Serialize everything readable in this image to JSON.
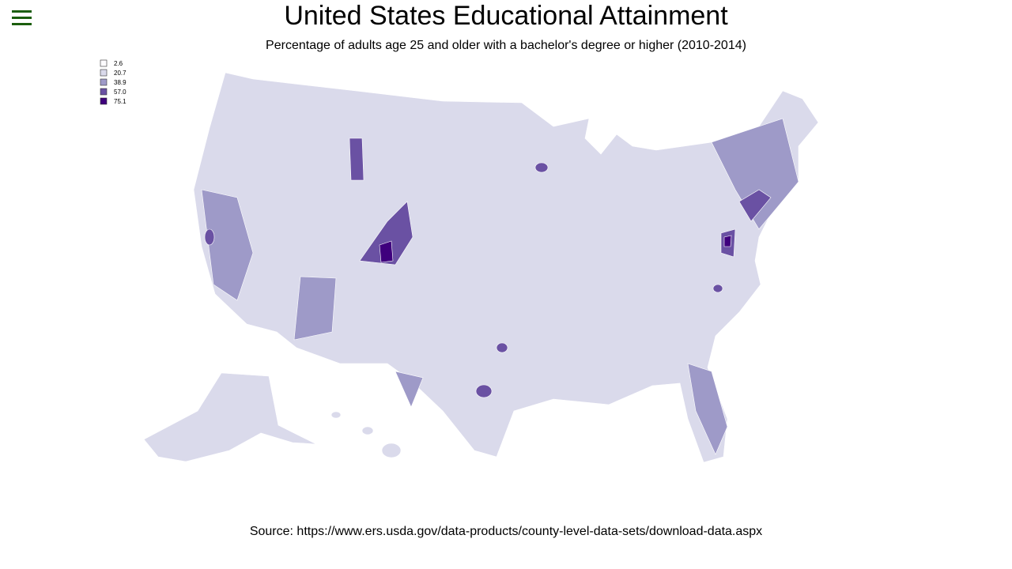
{
  "title": "United States Educational Attainment",
  "subtitle": "Percentage of adults age 25 and older with a bachelor's degree or higher (2010-2014)",
  "legend": {
    "entries": [
      {
        "value": 2.6,
        "color": "#fcfbfd"
      },
      {
        "value": 20.7,
        "color": "#dadaeb"
      },
      {
        "value": 38.9,
        "color": "#9e9ac8"
      },
      {
        "value": 57,
        "label": "57.0",
        "color": "#6a51a3"
      },
      {
        "value": 75.1,
        "color": "#3f007d"
      }
    ]
  },
  "source": "Source: https://www.ers.usda.gov/data-products/county-level-data-sets/download-data.aspx"
}
